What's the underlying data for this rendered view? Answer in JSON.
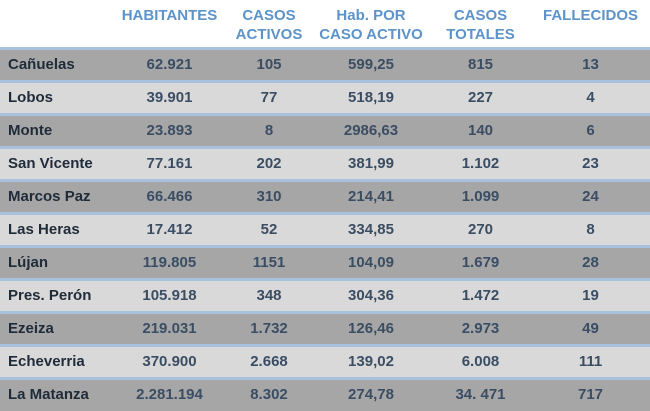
{
  "headers": [
    {
      "line1": "",
      "line2": ""
    },
    {
      "line1": "HABITANTES",
      "line2": ""
    },
    {
      "line1": "CASOS",
      "line2": "ACTIVOS"
    },
    {
      "line1": "Hab. POR",
      "line2": "CASO ACTIVO"
    },
    {
      "line1": "CASOS",
      "line2": "TOTALES"
    },
    {
      "line1": "FALLECIDOS",
      "line2": ""
    }
  ],
  "rows": [
    {
      "name": "Cañuelas",
      "habitantes": "62.921",
      "casos_activos": "105",
      "hab_por_caso": "599,25",
      "casos_totales": "815",
      "fallecidos": "13"
    },
    {
      "name": "Lobos",
      "habitantes": "39.901",
      "casos_activos": "77",
      "hab_por_caso": "518,19",
      "casos_totales": "227",
      "fallecidos": "4"
    },
    {
      "name": "Monte",
      "habitantes": "23.893",
      "casos_activos": "8",
      "hab_por_caso": "2986,63",
      "casos_totales": "140",
      "fallecidos": "6"
    },
    {
      "name": "San Vicente",
      "habitantes": "77.161",
      "casos_activos": "202",
      "hab_por_caso": "381,99",
      "casos_totales": "1.102",
      "fallecidos": "23"
    },
    {
      "name": "Marcos Paz",
      "habitantes": "66.466",
      "casos_activos": "310",
      "hab_por_caso": "214,41",
      "casos_totales": "1.099",
      "fallecidos": "24"
    },
    {
      "name": "Las Heras",
      "habitantes": "17.412",
      "casos_activos": "52",
      "hab_por_caso": "334,85",
      "casos_totales": "270",
      "fallecidos": "8"
    },
    {
      "name": "Lújan",
      "habitantes": "119.805",
      "casos_activos": "1151",
      "hab_por_caso": "104,09",
      "casos_totales": "1.679",
      "fallecidos": "28"
    },
    {
      "name": "Pres. Perón",
      "habitantes": "105.918",
      "casos_activos": "348",
      "hab_por_caso": "304,36",
      "casos_totales": "1.472",
      "fallecidos": "19"
    },
    {
      "name": "Ezeiza",
      "habitantes": "219.031",
      "casos_activos": "1.732",
      "hab_por_caso": "126,46",
      "casos_totales": "2.973",
      "fallecidos": "49"
    },
    {
      "name": "Echeverria",
      "habitantes": "370.900",
      "casos_activos": "2.668",
      "hab_por_caso": "139,02",
      "casos_totales": "6.008",
      "fallecidos": "111"
    },
    {
      "name": "La Matanza",
      "habitantes": "2.281.194",
      "casos_activos": "8.302",
      "hab_por_caso": "274,78",
      "casos_totales": "34. 471",
      "fallecidos": "717"
    }
  ],
  "colors": {
    "header_text": "#5c93c9",
    "row_dark": "#a6a6a6",
    "row_light": "#d9d9d9",
    "row_border": "#a8c2dd",
    "cell_text": "#3a4d63"
  }
}
